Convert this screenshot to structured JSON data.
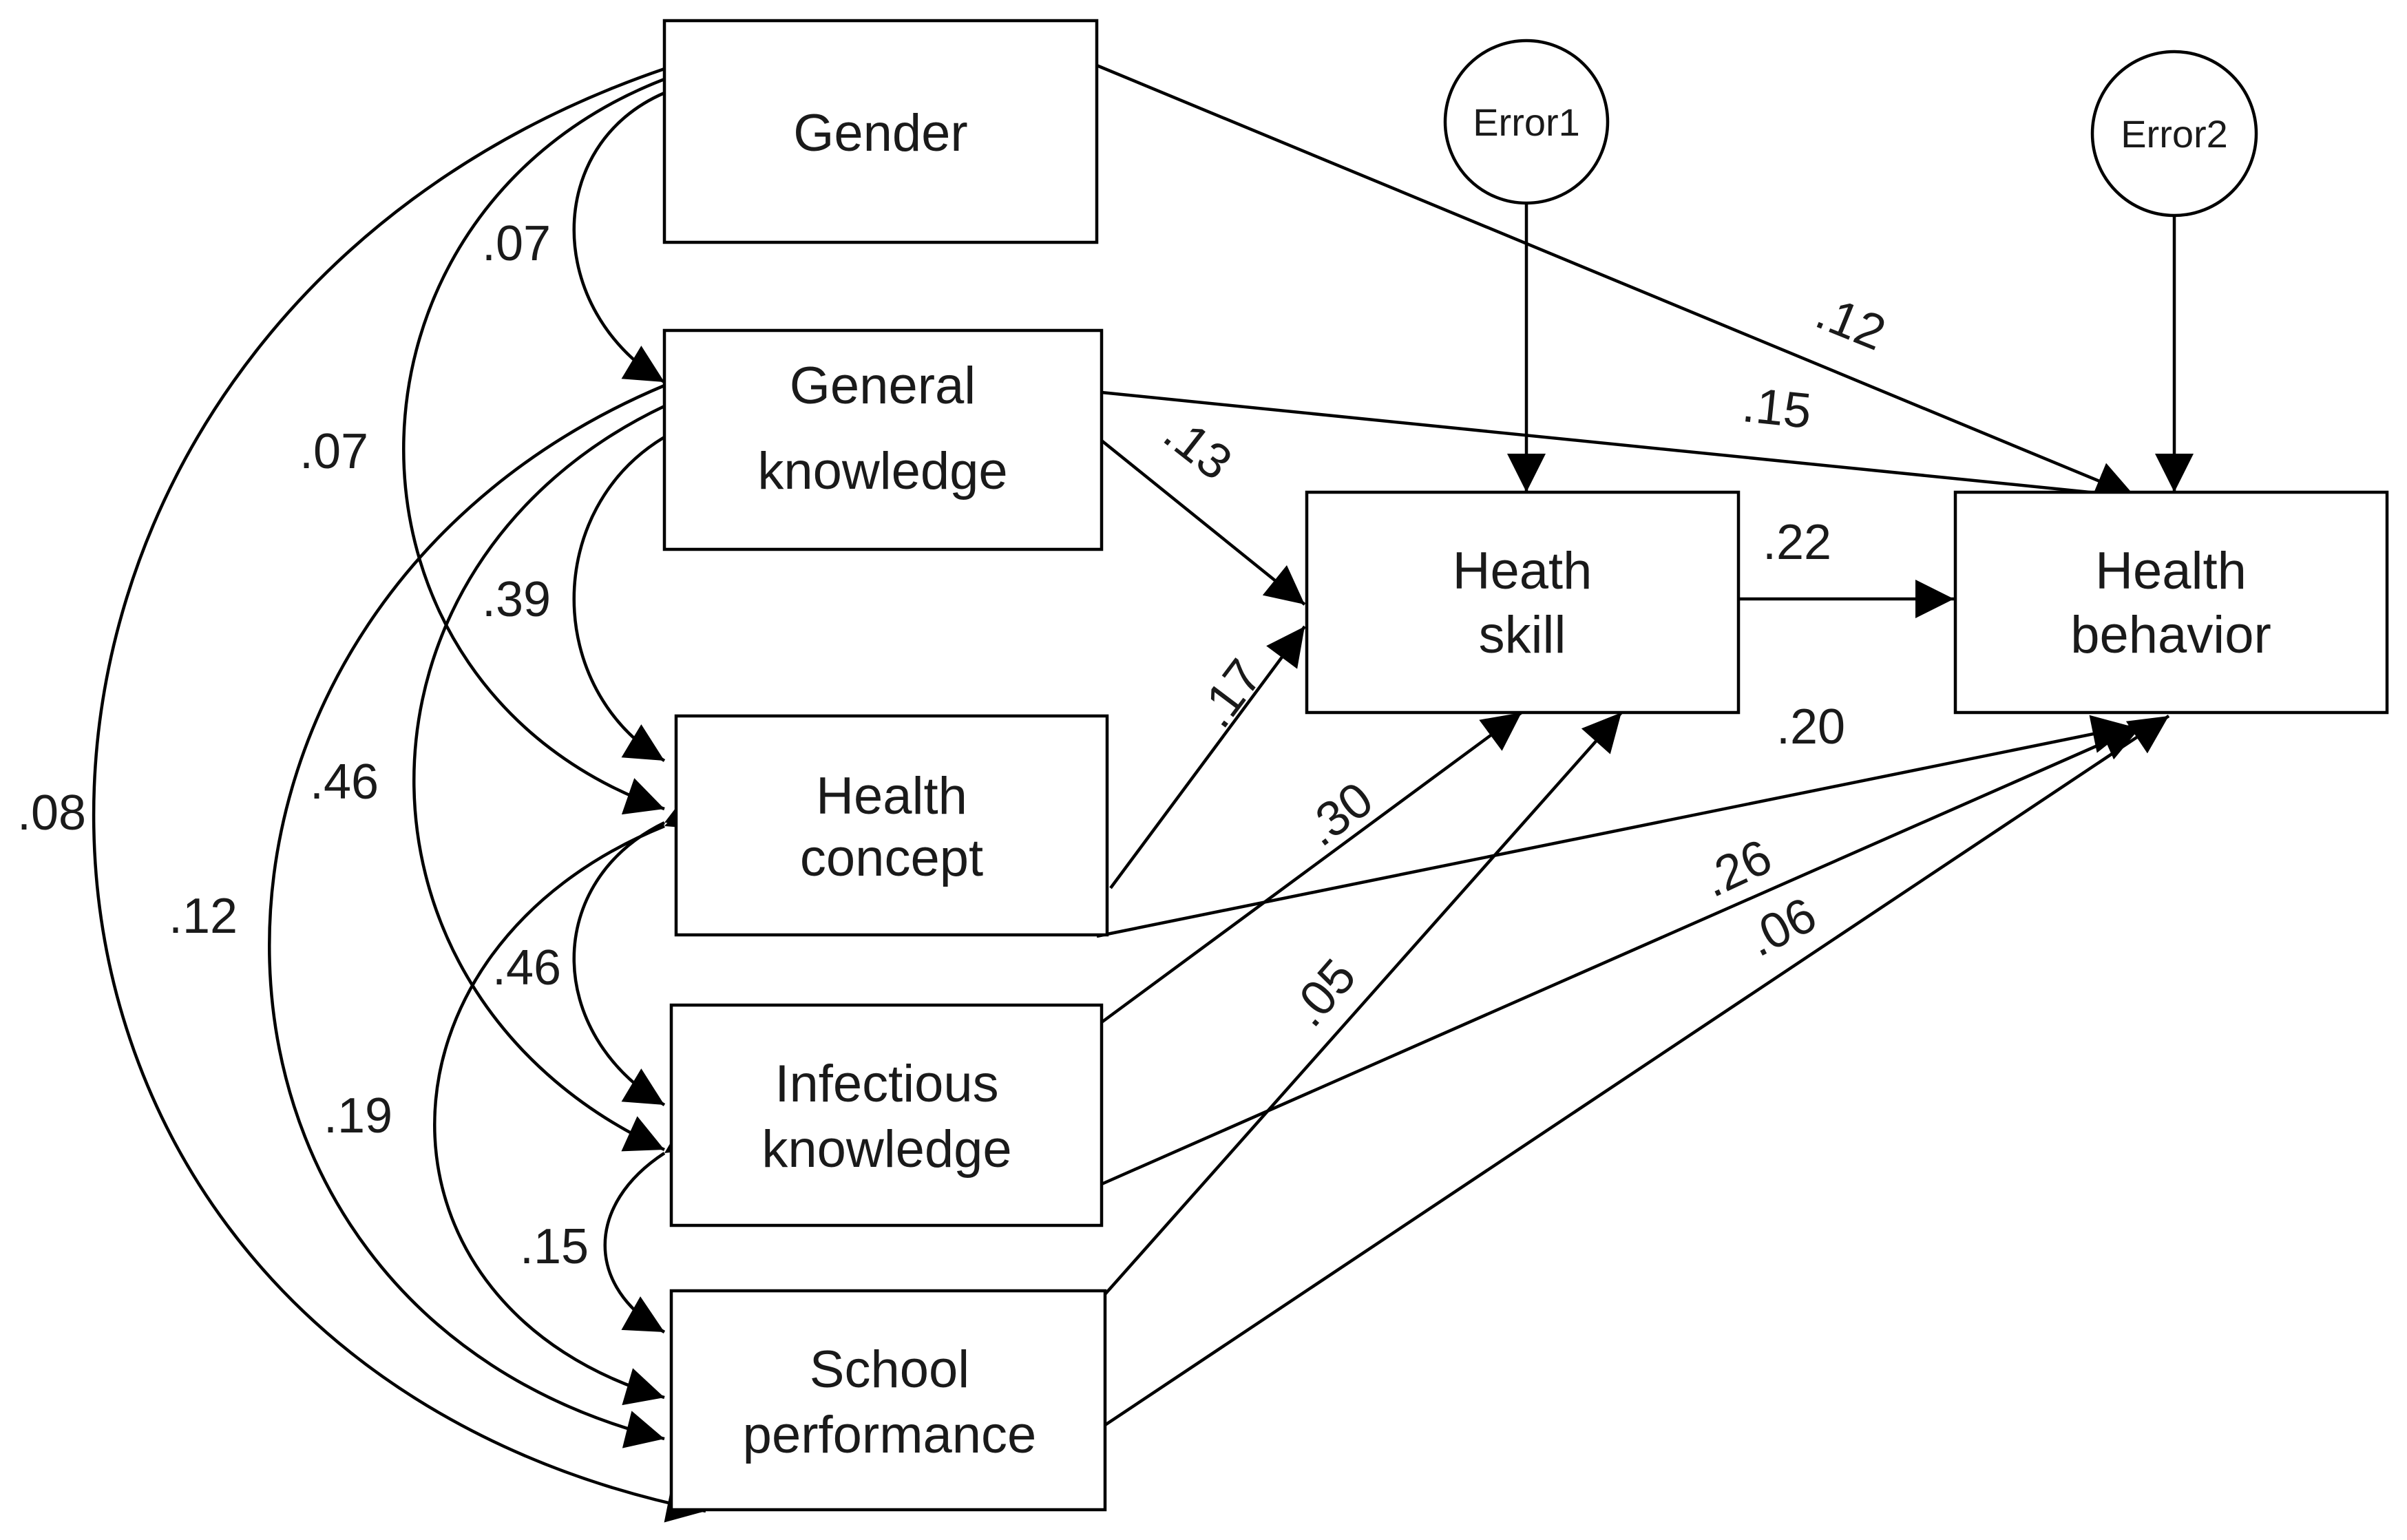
{
  "nodes": {
    "gender": {
      "lines": [
        "Gender"
      ]
    },
    "general_knowledge": {
      "lines": [
        "General",
        "knowledge"
      ]
    },
    "health_concept": {
      "lines": [
        "Health",
        "concept"
      ]
    },
    "infectious_knowledge": {
      "lines": [
        "Infectious",
        "knowledge"
      ]
    },
    "school_performance": {
      "lines": [
        "School",
        "performance"
      ]
    },
    "heath_skill": {
      "lines": [
        "Heath",
        "skill"
      ]
    },
    "health_behavior": {
      "lines": [
        "Health",
        "behavior"
      ]
    },
    "error1": {
      "lines": [
        "Error1"
      ]
    },
    "error2": {
      "lines": [
        "Error2"
      ]
    }
  },
  "paths": {
    "gender_to_behavior": ".12",
    "general_to_behavior": ".15",
    "general_to_skill": ".13",
    "concept_to_skill": ".17",
    "skill_to_behavior": ".22",
    "concept_to_behavior": ".20",
    "infectious_to_skill": ".30",
    "infectious_to_behavior": ".26",
    "school_to_skill": ".05",
    "school_to_behavior": ".06"
  },
  "correlations": {
    "gender_general": ".07",
    "gender_concept": ".07",
    "gender_school": ".08",
    "general_concept": ".39",
    "general_infectious": ".46",
    "general_school": ".12",
    "concept_infectious": ".46",
    "concept_school": ".19",
    "infectious_school": ".15"
  }
}
